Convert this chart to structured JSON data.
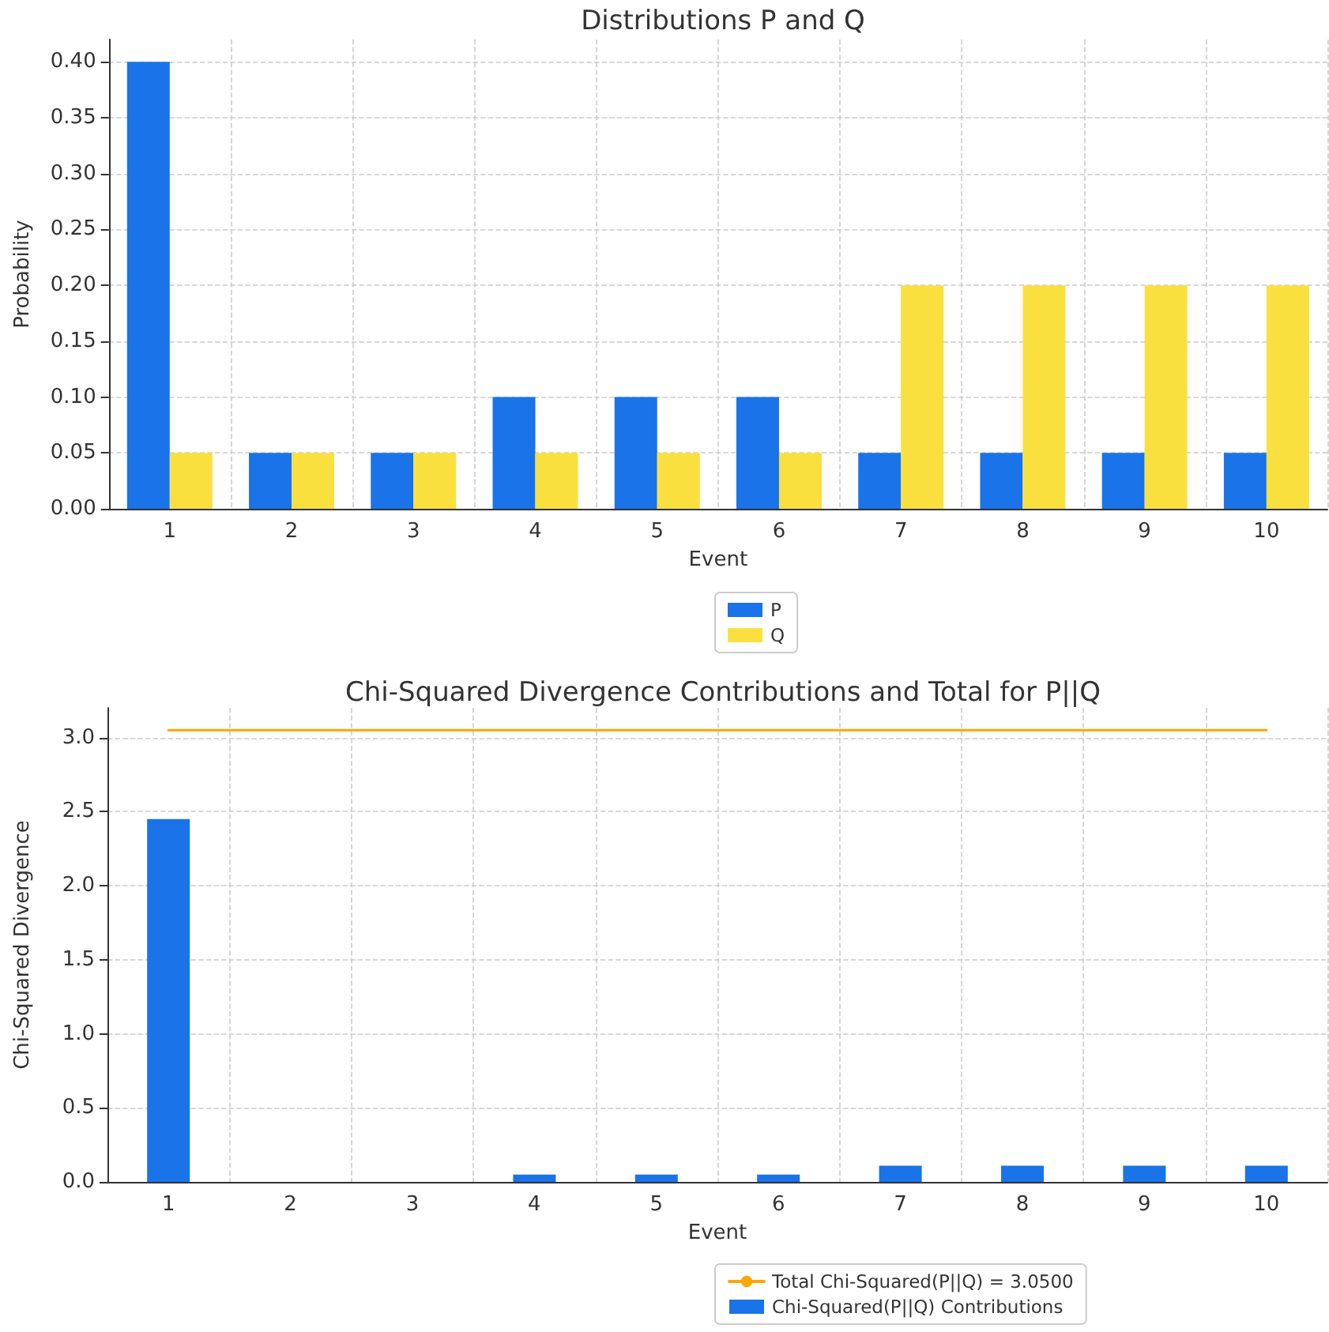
{
  "chart_data": [
    {
      "type": "bar",
      "title": "Distributions P and Q",
      "xlabel": "Event",
      "ylabel": "Probability",
      "categories": [
        "1",
        "2",
        "3",
        "4",
        "5",
        "6",
        "7",
        "8",
        "9",
        "10"
      ],
      "series": [
        {
          "name": "P",
          "color": "#1a73e8",
          "values": [
            0.4,
            0.05,
            0.05,
            0.1,
            0.1,
            0.1,
            0.05,
            0.05,
            0.05,
            0.05
          ]
        },
        {
          "name": "Q",
          "color": "#f9e03f",
          "values": [
            0.05,
            0.05,
            0.05,
            0.05,
            0.05,
            0.05,
            0.2,
            0.2,
            0.2,
            0.2
          ]
        }
      ],
      "ylim": [
        0,
        0.42
      ],
      "yticks": [
        {
          "value": 0,
          "label": "0.00"
        },
        {
          "value": 0.05,
          "label": "0.05"
        },
        {
          "value": 0.1,
          "label": "0.10"
        },
        {
          "value": 0.15,
          "label": "0.15"
        },
        {
          "value": 0.2,
          "label": "0.20"
        },
        {
          "value": 0.25,
          "label": "0.25"
        },
        {
          "value": 0.3,
          "label": "0.30"
        },
        {
          "value": 0.35,
          "label": "0.35"
        },
        {
          "value": 0.4,
          "label": "0.40"
        }
      ],
      "grid": true,
      "legend": "bottom"
    },
    {
      "type": "bar",
      "title": "Chi-Squared Divergence Contributions and Total for P||Q",
      "xlabel": "Event",
      "ylabel": "Chi-Squared Divergence",
      "categories": [
        "1",
        "2",
        "3",
        "4",
        "5",
        "6",
        "7",
        "8",
        "9",
        "10"
      ],
      "series": [
        {
          "name": "Total Chi-Squared(P||Q) = 3.0500",
          "type": "line",
          "marker": "none",
          "color": "#ffa500",
          "values": [
            3.05,
            3.05,
            3.05,
            3.05,
            3.05,
            3.05,
            3.05,
            3.05,
            3.05,
            3.05
          ]
        },
        {
          "name": "Chi-Squared(P||Q) Contributions",
          "color": "#1a73e8",
          "values": [
            2.45,
            0,
            0,
            0.05,
            0.05,
            0.05,
            0.11,
            0.11,
            0.11,
            0.11
          ]
        }
      ],
      "ylim": [
        0,
        3.2
      ],
      "yticks": [
        {
          "value": 0,
          "label": "0.0"
        },
        {
          "value": 0.5,
          "label": "0.5"
        },
        {
          "value": 1,
          "label": "1.0"
        },
        {
          "value": 1.5,
          "label": "1.5"
        },
        {
          "value": 2,
          "label": "2.0"
        },
        {
          "value": 2.5,
          "label": "2.5"
        },
        {
          "value": 3,
          "label": "3.0"
        }
      ],
      "grid": true,
      "legend": "bottom"
    }
  ]
}
